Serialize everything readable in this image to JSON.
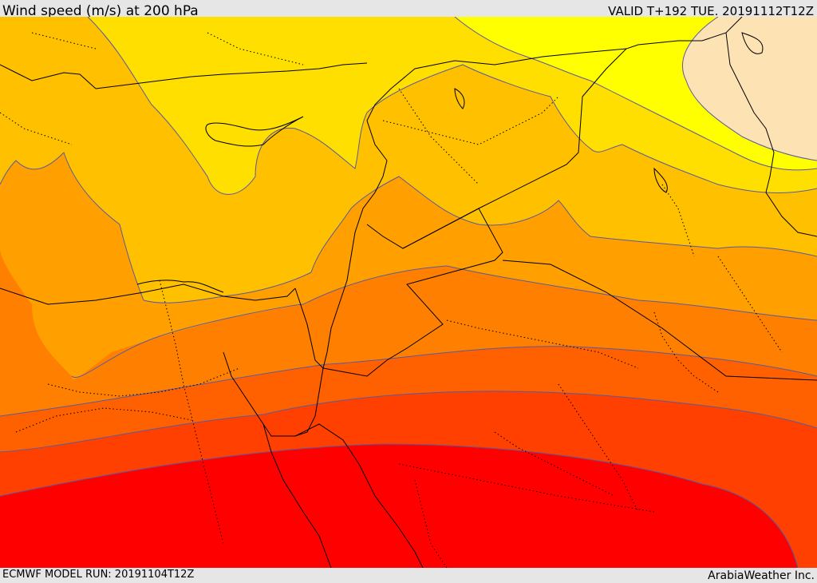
{
  "header": {
    "title": "Wind speed (m/s) at 200 hPa",
    "valid": "VALID T+192 TUE. 20191112T12Z"
  },
  "footer": {
    "model_run": "ECMWF MODEL RUN: 20191104T12Z",
    "credit": "ArabiaWeather Inc."
  },
  "map": {
    "field": "wind speed at 200 hPa",
    "fill_colors": {
      "peach": "#fde2b4",
      "light_yellow": "#ffff00",
      "yellow": "#ffdf00",
      "light_orange": "#ffc000",
      "orange": "#ff9f00",
      "dark_orange": "#ff8000",
      "red_orange": "#ff6000",
      "orange_red": "#ff4000",
      "red": "#ff0000"
    },
    "contour_color": "#5a5aa0",
    "border_color": "#000000"
  }
}
